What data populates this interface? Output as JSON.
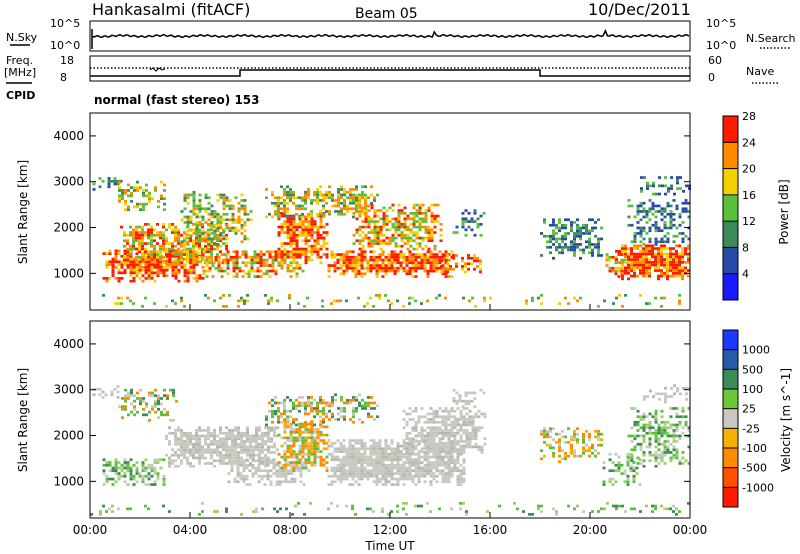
{
  "header": {
    "station": "Hankasalmi (fitACF)",
    "beam": "Beam 05",
    "date": "10/Dec/2011"
  },
  "noise_panel": {
    "left_label": "N.Sky",
    "right_label": "N.Search",
    "ticks_left": [
      "10^5",
      "10^0"
    ],
    "ticks_right": [
      "10^5",
      "10^0"
    ]
  },
  "freq_panel": {
    "left_label_1": "Freq.",
    "left_label_2": "[MHz]",
    "right_label": "Nave",
    "ticks_left": [
      "18",
      "8"
    ],
    "ticks_right": [
      "60",
      "0"
    ],
    "cpid_label": "CPID",
    "cpid_text": "normal (fast stereo) 153"
  },
  "colors": {
    "red": "#ff1a00",
    "orange": "#ff8c00",
    "yellow": "#f5d000",
    "green": "#5abf3a",
    "darkgreen": "#3a8a5a",
    "blue": "#2a4aa8",
    "grey": "#c8c8c0"
  },
  "chart_data": [
    {
      "type": "heatmap",
      "panel": "power",
      "ylabel": "Slant Range [km]",
      "ylim": [
        200,
        4500
      ],
      "y_ticks": [
        "1000",
        "2000",
        "3000",
        "4000"
      ],
      "xlim": [
        0,
        24
      ],
      "colorbar_label": "Power [dB]",
      "colorbar_ticks": [
        "4",
        "8",
        "12",
        "16",
        "20",
        "24",
        "28"
      ],
      "colorbar_colors": [
        "#1a1aff",
        "#2a4aa8",
        "#3a8a5a",
        "#5abf3a",
        "#f5d000",
        "#ff8c00",
        "#ff1a00"
      ]
    },
    {
      "type": "heatmap",
      "panel": "velocity",
      "ylabel": "Slant Range [km]",
      "ylim": [
        200,
        4500
      ],
      "y_ticks": [
        "1000",
        "2000",
        "3000",
        "4000"
      ],
      "xlim": [
        0,
        24
      ],
      "xlabel": "Time UT",
      "x_ticks": [
        "00:00",
        "04:00",
        "08:00",
        "12:00",
        "16:00",
        "20:00",
        "00:00"
      ],
      "colorbar_label": "Velocity [m s^-1]",
      "colorbar_ticks": [
        "1000",
        "500",
        "100",
        "25",
        "-25",
        "-100",
        "-500",
        "-1000"
      ],
      "colorbar_colors": [
        "#1a3aff",
        "#2a5aa8",
        "#3a8a5a",
        "#6cc83a",
        "#c8c8c0",
        "#f5b000",
        "#ff8c00",
        "#ff5000",
        "#ff1a00"
      ]
    }
  ]
}
